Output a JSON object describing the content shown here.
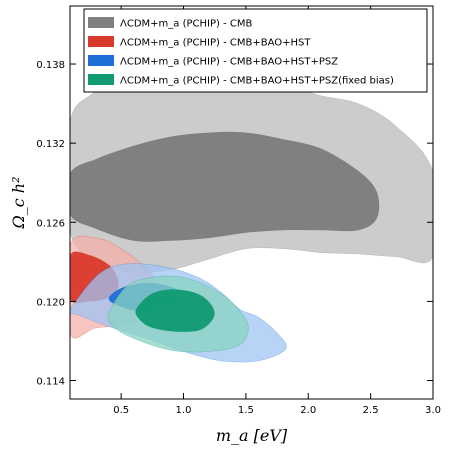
{
  "chart_data": {
    "type": "contour",
    "xlabel": "m_a [eV]",
    "ylabel": "Ω_c h²",
    "xlim": [
      0.09,
      3.0
    ],
    "ylim": [
      0.1126,
      0.1424
    ],
    "xticks": [
      0.5,
      1.0,
      1.5,
      2.0,
      2.5,
      3.0
    ],
    "xtick_labels": [
      "0.5",
      "1.0",
      "1.5",
      "2.0",
      "2.5",
      "3.0"
    ],
    "yticks": [
      0.114,
      0.12,
      0.126,
      0.132,
      0.138
    ],
    "ytick_labels": [
      "0.114",
      "0.120",
      "0.126",
      "0.132",
      "0.138"
    ],
    "legend_position": "top-left",
    "series": [
      {
        "name": "ΛCDM+m_a (PCHIP) - CMB",
        "legend_label": "ΛCDM+m_a (PCHIP) - CMB",
        "color_inner": "#808080",
        "color_outer": "#cccccc",
        "contour_95": [
          [
            0.09,
            0.1336
          ],
          [
            0.3,
            0.136
          ],
          [
            0.6,
            0.1386
          ],
          [
            0.9,
            0.1395
          ],
          [
            1.2,
            0.1382
          ],
          [
            1.5,
            0.137
          ],
          [
            1.8,
            0.1364
          ],
          [
            2.1,
            0.1356
          ],
          [
            2.4,
            0.135
          ],
          [
            2.7,
            0.1333
          ],
          [
            3.0,
            0.1298
          ],
          [
            3.0,
            0.1234
          ],
          [
            2.7,
            0.1234
          ],
          [
            2.4,
            0.1236
          ],
          [
            2.1,
            0.1237
          ],
          [
            1.8,
            0.124
          ],
          [
            1.5,
            0.124
          ],
          [
            1.2,
            0.1232
          ],
          [
            0.9,
            0.1224
          ],
          [
            0.6,
            0.1222
          ],
          [
            0.3,
            0.123
          ],
          [
            0.09,
            0.1254
          ]
        ],
        "contour_68": [
          [
            0.09,
            0.1297
          ],
          [
            0.3,
            0.1308
          ],
          [
            0.6,
            0.1318
          ],
          [
            0.9,
            0.1325
          ],
          [
            1.2,
            0.1328
          ],
          [
            1.5,
            0.1328
          ],
          [
            1.8,
            0.1323
          ],
          [
            2.1,
            0.1316
          ],
          [
            2.4,
            0.1299
          ],
          [
            2.55,
            0.1283
          ],
          [
            2.55,
            0.1263
          ],
          [
            2.4,
            0.1254
          ],
          [
            2.1,
            0.1254
          ],
          [
            1.8,
            0.1254
          ],
          [
            1.5,
            0.1252
          ],
          [
            1.2,
            0.1248
          ],
          [
            0.9,
            0.1246
          ],
          [
            0.6,
            0.1246
          ],
          [
            0.3,
            0.1255
          ],
          [
            0.09,
            0.1266
          ]
        ]
      },
      {
        "name": "ΛCDM+m_a (PCHIP) - CMB+BAO+HST",
        "legend_label": "ΛCDM+m_a (PCHIP) - CMB+BAO+HST",
        "color_inner": "#d9392b",
        "color_outer": "#f5b0aa",
        "contour_95": [
          [
            0.09,
            0.1242
          ],
          [
            0.3,
            0.1248
          ],
          [
            0.5,
            0.124
          ],
          [
            0.7,
            0.1225
          ],
          [
            0.85,
            0.1208
          ],
          [
            0.9,
            0.1196
          ],
          [
            0.6,
            0.1183
          ],
          [
            0.3,
            0.118
          ],
          [
            0.09,
            0.1176
          ]
        ],
        "contour_68": [
          [
            0.09,
            0.1235
          ],
          [
            0.25,
            0.1235
          ],
          [
            0.42,
            0.1226
          ],
          [
            0.48,
            0.1212
          ],
          [
            0.4,
            0.1203
          ],
          [
            0.25,
            0.12
          ],
          [
            0.09,
            0.1202
          ]
        ]
      },
      {
        "name": "ΛCDM+m_a (PCHIP) - CMB+BAO+HST+PSZ",
        "legend_label": "ΛCDM+m_a (PCHIP) - CMB+BAO+HST+PSZ",
        "color_inner": "#1f6fd6",
        "color_outer": "#9fc4f3",
        "contour_95": [
          [
            0.09,
            0.1193
          ],
          [
            0.3,
            0.1219
          ],
          [
            0.5,
            0.1228
          ],
          [
            0.8,
            0.1227
          ],
          [
            1.1,
            0.1219
          ],
          [
            1.3,
            0.1207
          ],
          [
            1.45,
            0.1194
          ],
          [
            1.6,
            0.1188
          ],
          [
            1.75,
            0.1176
          ],
          [
            1.82,
            0.1164
          ],
          [
            1.6,
            0.1155
          ],
          [
            1.3,
            0.1155
          ],
          [
            1.0,
            0.1162
          ],
          [
            0.7,
            0.1172
          ],
          [
            0.4,
            0.1181
          ],
          [
            0.15,
            0.119
          ]
        ],
        "contour_68": [
          [
            0.4,
            0.1202
          ],
          [
            0.5,
            0.121
          ],
          [
            0.7,
            0.1214
          ],
          [
            0.9,
            0.1211
          ],
          [
            1.0,
            0.1204
          ],
          [
            0.9,
            0.1196
          ],
          [
            0.7,
            0.1192
          ],
          [
            0.5,
            0.1196
          ]
        ]
      },
      {
        "name": "ΛCDM+m_a (PCHIP) - CMB+BAO+HST+PSZ(fixed bias)",
        "legend_label": "ΛCDM+m_a (PCHIP) - CMB+BAO+HST+PSZ(fixed bias)",
        "color_inner": "#0f9a72",
        "color_outer": "#8ad3c1",
        "contour_95": [
          [
            0.4,
            0.119
          ],
          [
            0.55,
            0.1212
          ],
          [
            0.8,
            0.1219
          ],
          [
            1.05,
            0.1217
          ],
          [
            1.3,
            0.1206
          ],
          [
            1.45,
            0.1193
          ],
          [
            1.52,
            0.118
          ],
          [
            1.45,
            0.1167
          ],
          [
            1.2,
            0.1162
          ],
          [
            0.9,
            0.1163
          ],
          [
            0.6,
            0.1172
          ],
          [
            0.45,
            0.118
          ]
        ],
        "contour_68": [
          [
            0.62,
            0.1194
          ],
          [
            0.75,
            0.1206
          ],
          [
            0.95,
            0.1209
          ],
          [
            1.15,
            0.1204
          ],
          [
            1.25,
            0.1191
          ],
          [
            1.15,
            0.1179
          ],
          [
            0.95,
            0.1177
          ],
          [
            0.75,
            0.118
          ],
          [
            0.65,
            0.1186
          ]
        ]
      }
    ]
  }
}
